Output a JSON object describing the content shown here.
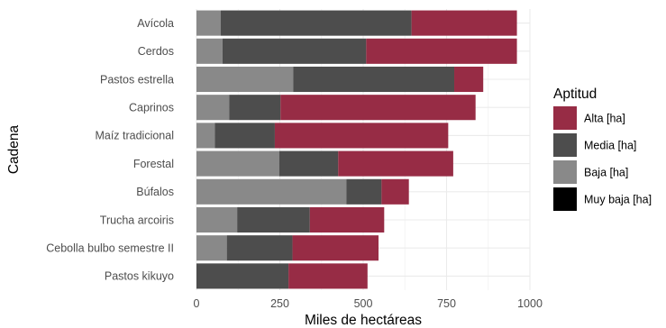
{
  "chart_data": {
    "type": "bar",
    "orientation": "horizontal",
    "stacked": true,
    "xlabel": "Miles de hectáreas",
    "ylabel": "Cadena",
    "xlim": [
      0,
      1000
    ],
    "xticks": [
      0,
      250,
      500,
      750,
      1000
    ],
    "grid": true,
    "legend_title": "Aptitud",
    "legend_position": "right",
    "categories": [
      "Avícola",
      "Cerdos",
      "Pastos estrella",
      "Caprinos",
      "Maíz tradicional",
      "Forestal",
      "Búfalos",
      "Trucha arcoiris",
      "Cebolla bulbo semestre II",
      "Pastos kikuyo"
    ],
    "series": [
      {
        "name": "Alta [ha]",
        "color": "#972c45",
        "values": [
          316,
          452,
          87,
          585,
          520,
          345,
          82,
          223,
          258,
          237
        ]
      },
      {
        "name": "Media [ha]",
        "color": "#4d4d4d",
        "values": [
          572,
          431,
          483,
          154,
          180,
          177,
          105,
          218,
          197,
          276
        ]
      },
      {
        "name": "Baja [ha]",
        "color": "#898989",
        "values": [
          73,
          78,
          290,
          98,
          55,
          248,
          450,
          122,
          91,
          0
        ]
      },
      {
        "name": "Muy baja [ha]",
        "color": "#000000",
        "values": [
          0,
          0,
          0,
          0,
          0,
          0,
          0,
          0,
          0,
          0
        ]
      }
    ]
  }
}
